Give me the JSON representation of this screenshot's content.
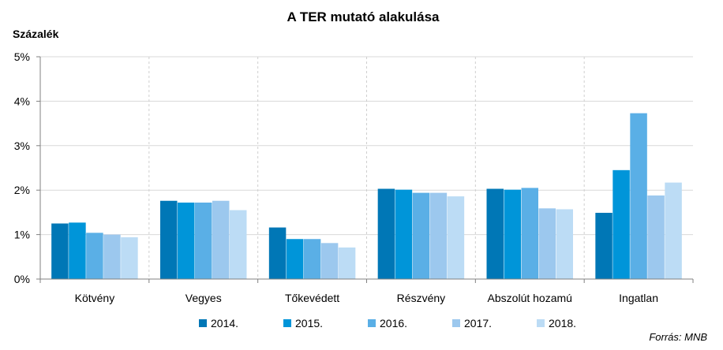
{
  "chart_data": {
    "type": "bar",
    "title": "A TER mutató alakulása",
    "ylabel": "Százalék",
    "xlabel": "",
    "ylim": [
      0,
      5
    ],
    "yticks": [
      0,
      1,
      2,
      3,
      4,
      5
    ],
    "ytick_labels": [
      "0%",
      "1%",
      "2%",
      "3%",
      "4%",
      "5%"
    ],
    "grid": true,
    "legend_position": "bottom",
    "categories": [
      "Kötvény",
      "Vegyes",
      "Tőkevédett",
      "Részvény",
      "Abszolút hozamú",
      "Ingatlan"
    ],
    "series": [
      {
        "name": "2014.",
        "color": "#0077b6",
        "values": [
          1.25,
          1.76,
          1.16,
          2.03,
          2.03,
          1.49
        ]
      },
      {
        "name": "2015.",
        "color": "#0095d9",
        "values": [
          1.27,
          1.72,
          0.9,
          2.01,
          2.01,
          2.45
        ]
      },
      {
        "name": "2016.",
        "color": "#5aafe6",
        "values": [
          1.04,
          1.72,
          0.9,
          1.94,
          2.05,
          3.73
        ]
      },
      {
        "name": "2017.",
        "color": "#9cc8ee",
        "values": [
          1.0,
          1.76,
          0.81,
          1.94,
          1.59,
          1.88
        ]
      },
      {
        "name": "2018.",
        "color": "#bcdcf5",
        "values": [
          0.94,
          1.55,
          0.71,
          1.86,
          1.57,
          2.17
        ]
      }
    ],
    "source": "Forrás: MNB"
  }
}
